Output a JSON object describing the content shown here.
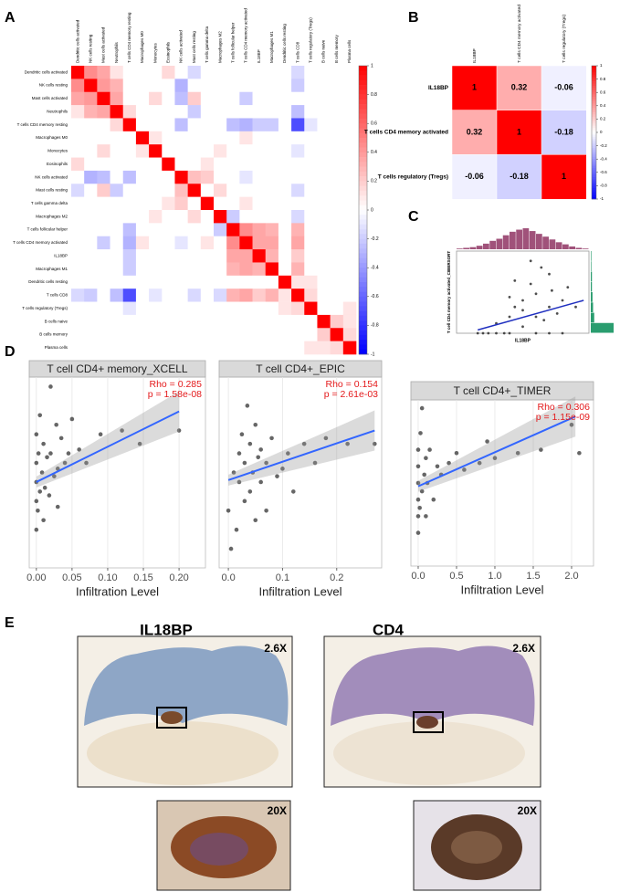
{
  "panel_labels": [
    "A",
    "B",
    "C",
    "D",
    "E"
  ],
  "chart_data": [
    {
      "type": "heatmap",
      "rows": [
        "Dendritic cells activated",
        "NK cells resting",
        "Mast cells activated",
        "Neutrophils",
        "T cells CD4 memory resting",
        "Macrophages M0",
        "Monocytes",
        "Eosinophils",
        "NK cells activated",
        "Mast cells resting",
        "T cells gamma delta",
        "Macrophages M2",
        "T cells follicular helper",
        "T cells CD4 memory activated",
        "IL18BP",
        "Macrophages M1",
        "Dendritic cells resting",
        "T cells CD8",
        "T cells regulatory (Tregs)",
        "B cells naive",
        "B cells memory",
        "Plasma cells"
      ],
      "columns": [
        "Dendritic cells activated",
        "NK cells resting",
        "Mast cells activated",
        "Neutrophils",
        "T cells CD4 memory resting",
        "Macrophages M0",
        "Monocytes",
        "Eosinophils",
        "NK cells activated",
        "Mast cells resting",
        "T cells gamma delta",
        "Macrophages M2",
        "T cells follicular helper",
        "T cells CD4 memory activated",
        "IL18BP",
        "Macrophages M1",
        "Dendritic cells resting",
        "T cells CD8",
        "T cells regulatory (Tregs)",
        "B cells naive",
        "B cells memory",
        "Plasma cells"
      ],
      "matrix": [
        [
          1,
          0.45,
          0.35,
          0.1,
          0,
          0,
          0,
          0.15,
          0,
          -0.15,
          0,
          0,
          0,
          0,
          0,
          0,
          0,
          -0.15,
          0,
          0,
          0,
          0
        ],
        [
          0.45,
          1,
          0.4,
          0.3,
          0,
          0,
          0,
          0,
          -0.3,
          0,
          0,
          0,
          0,
          0,
          0,
          0,
          0,
          -0.2,
          0,
          0,
          0,
          0
        ],
        [
          0.35,
          0.4,
          1,
          0.35,
          0,
          0,
          0.15,
          0,
          -0.25,
          0.2,
          0,
          0,
          0,
          -0.2,
          0,
          0,
          0,
          0,
          0,
          0,
          0,
          0
        ],
        [
          0.1,
          0.3,
          0.35,
          1,
          0.15,
          0,
          0,
          0,
          0,
          -0.2,
          0,
          0,
          0,
          0,
          0,
          0,
          0,
          -0.25,
          0,
          0,
          0,
          0
        ],
        [
          0,
          0,
          0,
          0.15,
          1,
          0,
          0,
          0,
          -0.25,
          0,
          0,
          0,
          -0.25,
          -0.3,
          -0.2,
          -0.2,
          0,
          -0.7,
          -0.1,
          0,
          0,
          0
        ],
        [
          0,
          0,
          0,
          0,
          0,
          1,
          0.1,
          0,
          0,
          0,
          0,
          0,
          0,
          0.1,
          0,
          0,
          0,
          0,
          0,
          0,
          0,
          0
        ],
        [
          0,
          0,
          0.15,
          0,
          0,
          0.1,
          1,
          0,
          0,
          0,
          0,
          0.1,
          0,
          0,
          0,
          0,
          0,
          -0.1,
          0,
          0,
          0,
          0
        ],
        [
          0.15,
          0,
          0,
          0,
          0,
          0,
          0,
          1,
          0,
          0,
          0.1,
          0,
          0,
          0,
          0,
          0,
          0,
          0,
          0,
          0,
          0,
          0
        ],
        [
          0,
          -0.3,
          -0.25,
          0,
          -0.25,
          0,
          0,
          0,
          1,
          0.25,
          0.2,
          0,
          0,
          -0.1,
          0,
          0,
          0,
          0,
          0,
          0,
          0,
          0
        ],
        [
          -0.15,
          0,
          0.2,
          -0.2,
          0,
          0,
          0,
          0,
          0.25,
          1,
          0,
          0.15,
          0,
          0,
          0,
          0,
          0,
          -0.15,
          0,
          0,
          0,
          0
        ],
        [
          0,
          0,
          0,
          0,
          0,
          0,
          0,
          0.1,
          0.2,
          0,
          1,
          0,
          0,
          0.1,
          0,
          0,
          0,
          0,
          0,
          0,
          0,
          0
        ],
        [
          0,
          0,
          0,
          0,
          0,
          0,
          0.1,
          0,
          0,
          0.15,
          0,
          1,
          -0.2,
          0,
          0,
          0,
          0,
          -0.15,
          0,
          0,
          0,
          0
        ],
        [
          0,
          0,
          0,
          0,
          -0.25,
          0,
          0,
          0,
          0,
          0,
          0,
          -0.2,
          1,
          0.45,
          0.35,
          0.3,
          0,
          0.3,
          0,
          0,
          0,
          0
        ],
        [
          0,
          0,
          -0.2,
          0,
          -0.3,
          0.1,
          0,
          0,
          -0.1,
          0,
          0.1,
          0,
          0.45,
          1,
          0.35,
          0.35,
          0,
          0.35,
          0,
          0,
          0,
          0
        ],
        [
          0,
          0,
          0,
          0,
          -0.2,
          0,
          0,
          0,
          0,
          0,
          0,
          0,
          0.35,
          0.35,
          1,
          0.3,
          0,
          0.2,
          0,
          0,
          0,
          0
        ],
        [
          0,
          0,
          0,
          0,
          -0.2,
          0,
          0,
          0,
          0,
          0,
          0,
          0,
          0.3,
          0.35,
          0.3,
          1,
          0,
          0.3,
          0,
          0,
          0,
          0
        ],
        [
          0,
          0,
          0,
          0,
          0,
          0,
          0,
          0,
          0,
          0,
          0,
          0,
          0,
          0,
          0,
          0,
          1,
          0.1,
          0.1,
          0,
          0,
          0
        ],
        [
          -0.15,
          -0.2,
          0,
          -0.25,
          -0.7,
          0,
          -0.1,
          0,
          0,
          -0.15,
          0,
          -0.15,
          0.3,
          0.35,
          0.2,
          0.3,
          0.1,
          1,
          0.15,
          0,
          0,
          0
        ],
        [
          0,
          0,
          0,
          0,
          -0.1,
          0,
          0,
          0,
          0,
          0,
          0,
          0,
          0,
          0,
          0,
          0,
          0.1,
          0.15,
          1,
          0,
          0,
          0.1
        ],
        [
          0,
          0,
          0,
          0,
          0,
          0,
          0,
          0,
          0,
          0,
          0,
          0,
          0,
          0,
          0,
          0,
          0,
          0,
          0,
          1,
          0.2,
          0.1
        ],
        [
          0,
          0,
          0,
          0,
          0,
          0,
          0,
          0,
          0,
          0,
          0,
          0,
          0,
          0,
          0,
          0,
          0,
          0,
          0,
          0.2,
          1,
          0.15
        ],
        [
          0,
          0,
          0,
          0,
          0,
          0,
          0,
          0,
          0,
          0,
          0,
          0,
          0,
          0,
          0,
          0,
          0,
          0,
          0.1,
          0.1,
          0.15,
          1
        ]
      ],
      "clim": [
        -1,
        1
      ],
      "colorbar_ticks": [
        1,
        0.8,
        0.6,
        0.4,
        0.2,
        0,
        -0.2,
        -0.4,
        -0.6,
        -0.8,
        -1
      ]
    },
    {
      "type": "heatmap",
      "rows": [
        "IL18BP",
        "T cells CD4 memory activated",
        "T cells regulatory (Tregs)"
      ],
      "columns": [
        "IL18BP",
        "T cells CD4 memory activated",
        "T cells regulatory (Tregs)"
      ],
      "matrix": [
        [
          1,
          0.32,
          -0.06
        ],
        [
          0.32,
          1,
          -0.18
        ],
        [
          -0.06,
          -0.18,
          1
        ]
      ],
      "clim": [
        -1,
        1
      ],
      "colorbar_ticks": [
        1,
        0.8,
        0.6,
        0.4,
        0.2,
        0,
        -0.2,
        -0.4,
        -0.6,
        -0.8,
        -1
      ]
    },
    {
      "type": "scatter",
      "xlabel": "IL18BP",
      "ylabel": "T cell CD4 memory activated_CIBERSORT",
      "xlim": [
        0,
        5
      ],
      "ylim": [
        0,
        0.25
      ],
      "x": [
        0.8,
        1,
        1.2,
        1.5,
        1.8,
        2,
        2,
        2.2,
        2.5,
        2.5,
        2.8,
        3,
        3,
        3.2,
        3.5,
        3.5,
        3.8,
        4,
        4.2,
        4.5,
        1.5,
        2,
        2.5,
        3,
        3.5,
        4,
        2.8,
        3.3,
        3.6,
        2.2
      ],
      "y": [
        0,
        0,
        0,
        0,
        0,
        0,
        0.05,
        0.08,
        0.02,
        0.1,
        0.15,
        0.05,
        0.12,
        0.2,
        0.08,
        0.18,
        0.06,
        0.1,
        0.14,
        0.08,
        0.03,
        0.11,
        0.07,
        0,
        0,
        0,
        0.22,
        0.04,
        0.13,
        0.16
      ],
      "fit": {
        "x": [
          0.8,
          4.8
        ],
        "y": [
          0.01,
          0.1
        ]
      },
      "top_hist": [
        1,
        2,
        3,
        5,
        8,
        12,
        15,
        20,
        25,
        28,
        30,
        26,
        22,
        18,
        14,
        10,
        7,
        4,
        2,
        1
      ],
      "right_hist": [
        40,
        6,
        4,
        3,
        2,
        2,
        1,
        1
      ]
    },
    {
      "type": "scatter",
      "title": "T cell CD4+ memory_XCELL",
      "annotations": [
        "Rho = 0.285",
        "p = 1.58e-08"
      ],
      "xlabel": "Infiltration Level",
      "xlim": [
        -0.01,
        0.237
      ],
      "ylim": [
        0,
        10
      ],
      "xticks": [
        {
          "value": 0,
          "label": "0.00"
        },
        0.05,
        {
          "value": 0.1,
          "label": "0.10"
        },
        0.15,
        {
          "value": 0.2,
          "label": "0.20"
        }
      ],
      "x": [
        0,
        0,
        0,
        0,
        0,
        0.002,
        0.003,
        0.005,
        0.005,
        0.008,
        0.01,
        0.01,
        0.012,
        0.015,
        0.018,
        0.02,
        0.02,
        0.025,
        0.028,
        0.03,
        0.03,
        0.035,
        0.04,
        0.045,
        0.05,
        0.06,
        0.07,
        0.09,
        0.12,
        0.145,
        0.2
      ],
      "y": [
        2,
        3.5,
        4.5,
        5.5,
        7,
        3,
        6,
        4,
        8,
        5,
        2.5,
        6.5,
        4.2,
        5.8,
        3.8,
        9.5,
        6,
        4.8,
        7.5,
        5.2,
        3.2,
        6.8,
        5.5,
        6,
        7.8,
        6.2,
        5.5,
        7,
        7.2,
        6.5,
        7.2
      ],
      "fit": {
        "x": [
          0,
          0.2
        ],
        "y": [
          4.5,
          8.2
        ]
      }
    },
    {
      "type": "scatter",
      "title": "T cell CD4+_EPIC",
      "annotations": [
        "Rho = 0.154",
        "p = 2.61e-03"
      ],
      "xlabel": "Infiltration Level",
      "xlim": [
        -0.017,
        0.283
      ],
      "ylim": [
        0,
        10
      ],
      "xticks": [
        {
          "value": 0,
          "label": "0.0"
        },
        0.1,
        0.2
      ],
      "x": [
        0,
        0.01,
        0.015,
        0.02,
        0.02,
        0.025,
        0.03,
        0.03,
        0.035,
        0.04,
        0.04,
        0.045,
        0.05,
        0.05,
        0.055,
        0.06,
        0.06,
        0.07,
        0.07,
        0.08,
        0.09,
        0.1,
        0.11,
        0.12,
        0.14,
        0.16,
        0.18,
        0.22,
        0.27,
        0.005
      ],
      "y": [
        3,
        5,
        2,
        6,
        4.5,
        7,
        3.5,
        5.5,
        8.5,
        4,
        6.5,
        5,
        2.5,
        7.5,
        5.8,
        4.5,
        6.2,
        3,
        5.5,
        6.8,
        4.8,
        5.2,
        6,
        4,
        6.5,
        5.5,
        6.8,
        6.5,
        6.5,
        1
      ],
      "fit": {
        "x": [
          0,
          0.27
        ],
        "y": [
          4.6,
          7.2
        ]
      }
    },
    {
      "type": "scatter",
      "title": "T cell CD4+_TIMER",
      "annotations": [
        "Rho = 0.306",
        "p = 1.15e-09"
      ],
      "xlabel": "Infiltration Level",
      "xlim": [
        -0.095,
        2.286
      ],
      "ylim": [
        0,
        10
      ],
      "xticks": [
        {
          "value": 0,
          "label": "0.0"
        },
        0.5,
        {
          "value": 1,
          "label": "1.0"
        },
        1.5,
        {
          "value": 2,
          "label": "2.0"
        }
      ],
      "x": [
        0,
        0,
        0,
        0,
        0,
        0,
        0.02,
        0.03,
        0.05,
        0.05,
        0.08,
        0.1,
        0.1,
        0.12,
        0.15,
        0.2,
        0.25,
        0.3,
        0.4,
        0.5,
        0.6,
        0.8,
        0.9,
        1,
        1.3,
        1.6,
        2,
        2.1
      ],
      "y": [
        2,
        3,
        4,
        5,
        6,
        7,
        3.5,
        8,
        4.5,
        9.5,
        5.5,
        3,
        6.5,
        5,
        7,
        4,
        6,
        5.5,
        6.2,
        6.8,
        5.8,
        6.2,
        7.5,
        6.5,
        6.8,
        7,
        8.5,
        6.8
      ],
      "fit": {
        "x": [
          0,
          2.05
        ],
        "y": [
          4.8,
          9
        ]
      }
    }
  ],
  "panel_e": {
    "titles": [
      "IL18BP",
      "CD4"
    ],
    "magnifications": [
      "2.6X",
      "2.6X",
      "20X",
      "20X"
    ]
  }
}
